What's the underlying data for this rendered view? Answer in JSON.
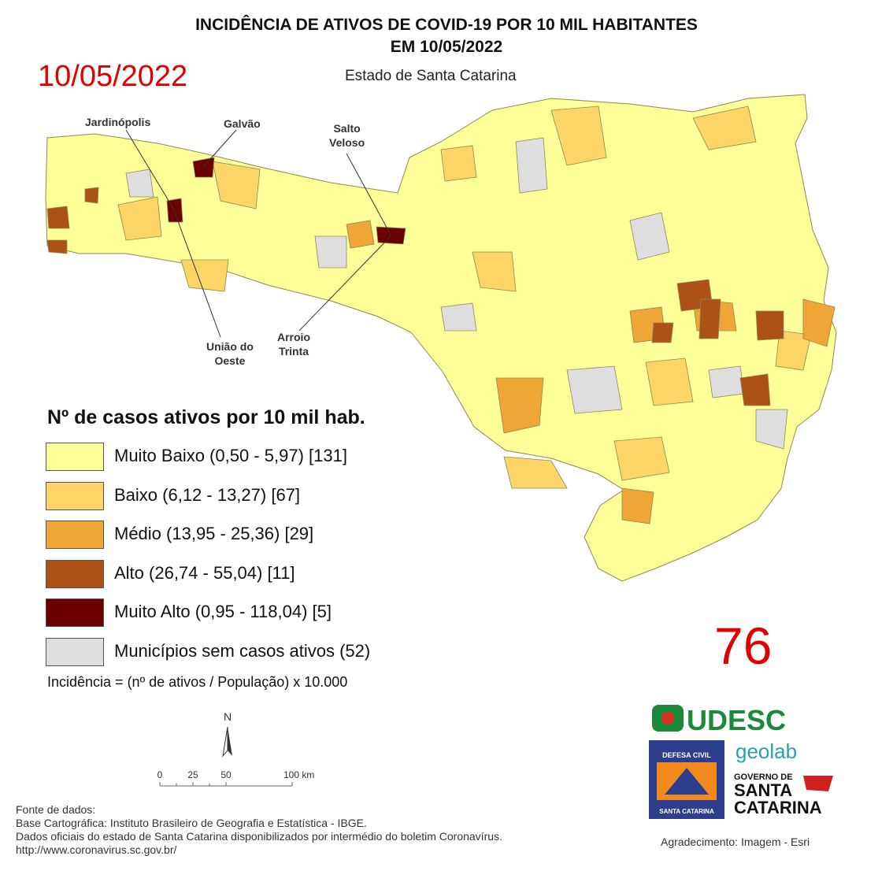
{
  "title": [
    "INCIDÊNCIA DE ATIVOS DE COVID-19 POR 10 MIL HABITANTES",
    "EM 10/05/2022"
  ],
  "date": "10/05/2022",
  "subtitle": "Estado de Santa Catarina",
  "map_labels": {
    "jardinopolis": "Jardinópolis",
    "galvao": "Galvão",
    "salto_veloso": [
      "Salto",
      "Veloso"
    ],
    "uniao_do_oeste": [
      "União do",
      "Oeste"
    ],
    "arroio_trinta": [
      "Arroio",
      "Trinta"
    ]
  },
  "legend": {
    "title": "Nº de casos ativos por 10 mil hab.",
    "items": [
      {
        "label": "Muito Baixo (0,50 - 5,97) [131]",
        "color": "#ffff99"
      },
      {
        "label": "Baixo (6,12 - 13,27) [67]",
        "color": "#fdd466"
      },
      {
        "label": "Médio (13,95 - 25,36) [29]",
        "color": "#efa636"
      },
      {
        "label": "Alto (26,74 - 55,04) [11]",
        "color": "#ad5216"
      },
      {
        "label": "Muito Alto (0,95 - 118,04) [5]",
        "color": "#6b0000"
      },
      {
        "label": "Municípios sem casos ativos (52)",
        "color": "#dedede"
      }
    ],
    "formula": "Incidência = (nº de ativos / População) x 10.000"
  },
  "count": "76",
  "north": "N",
  "scale": [
    "0",
    "25",
    "50",
    "100 km"
  ],
  "logos": {
    "udesc": "UDESC",
    "defesa": [
      "DEFESA CIVIL",
      "SANTA CATARINA"
    ],
    "geolab": "geolab",
    "governo": [
      "GOVERNO DE",
      "SANTA",
      "CATARINA"
    ]
  },
  "sources": [
    "Fonte de dados:",
    "Base Cartográfica: Instituto Brasileiro de Geografia e Estatística - IBGE.",
    "Dados oficiais do estado de Santa Catarina disponibilizados por intermédio do boletim Coronavírus.",
    "http://www.coronavirus.sc.gov.br/"
  ],
  "credit": "Agradecimento: Imagem - Esri"
}
